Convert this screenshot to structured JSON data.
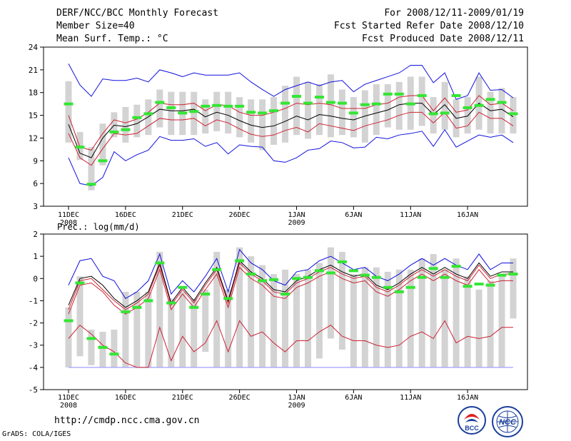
{
  "header": {
    "title": "DERF/NCC/BCC Monthly Forecast",
    "member_size": "Member Size=40",
    "variable": "Mean Surf. Temp.: °C",
    "forecast_range": "For 2008/12/11-2009/01/19",
    "start_refer_date": "Fcst Started Refer Date 2008/12/10",
    "produced_date": "Fcst Produced Date 2008/12/11"
  },
  "footer": {
    "url": "http://cmdp.ncc.cma.gov.cn",
    "credit": "GrADS: COLA/IGES",
    "logo_left_text": "BCC",
    "logo_right_text": "NCC"
  },
  "colors": {
    "box": "#d3d3d3",
    "green": "#33e633",
    "red": "#cc2233",
    "blue": "#1010dd",
    "black": "#000000",
    "floor": "#a0a0ff"
  },
  "chart_data": [
    {
      "type": "line",
      "name": "temperature",
      "title": "Mean Surf. Temp.: °C",
      "xlabel": "",
      "ylabel": "°C",
      "ylim": [
        3,
        24
      ],
      "yticks": [
        3,
        6,
        9,
        12,
        15,
        18,
        21,
        24
      ],
      "xtick_days": [
        1,
        6,
        11,
        16,
        21,
        26,
        31,
        36
      ],
      "xtick_labels": [
        "11DEC",
        "16DEC",
        "21DEC",
        "26DEC",
        "1JAN",
        "6JAN",
        "11JAN",
        "16JAN"
      ],
      "xtick_sublabels": [
        "2008",
        "",
        "",
        "",
        "2009",
        "",
        "",
        ""
      ],
      "days": [
        1,
        2,
        3,
        4,
        5,
        6,
        7,
        8,
        9,
        10,
        11,
        12,
        13,
        14,
        15,
        16,
        17,
        18,
        19,
        20,
        21,
        22,
        23,
        24,
        25,
        26,
        27,
        28,
        29,
        30,
        31,
        32,
        33,
        34,
        35,
        36,
        37,
        38,
        39,
        40
      ],
      "series": [
        {
          "name": "max",
          "color": "blue",
          "values": [
            21.8,
            19,
            17.5,
            19.8,
            19.6,
            19.6,
            19.9,
            19.4,
            21,
            20.6,
            20.1,
            20.6,
            20.3,
            20.3,
            20.3,
            20.6,
            19.4,
            18.4,
            17.5,
            18.4,
            18.9,
            19.4,
            18.9,
            19.4,
            19.6,
            18.1,
            19.1,
            19.6,
            20.1,
            20.6,
            21.6,
            21.6,
            19.3,
            20.6,
            17.1,
            17.6,
            20.6,
            18.3,
            18.4,
            17.3
          ]
        },
        {
          "name": "upper_quartile",
          "color": "red",
          "values": [
            15,
            10.8,
            10.4,
            12.6,
            14.4,
            14,
            14.5,
            15.4,
            16.6,
            16.4,
            16.4,
            16.6,
            15.6,
            16.4,
            16.3,
            15.4,
            15,
            15,
            15.4,
            15.9,
            16.6,
            16.4,
            16.6,
            16.4,
            15.9,
            15.9,
            15.9,
            16.4,
            16.6,
            17.4,
            17.6,
            17.6,
            15.6,
            17.3,
            15.4,
            15.7,
            17.6,
            16.4,
            16.6,
            15.6
          ]
        },
        {
          "name": "mean",
          "color": "black",
          "values": [
            13.8,
            10,
            9.4,
            12,
            13.7,
            13.5,
            13.9,
            14.8,
            15.8,
            15.6,
            15.6,
            15.8,
            14.8,
            15.4,
            15,
            14.3,
            13.7,
            13.4,
            13.6,
            14.2,
            14.9,
            14.4,
            15.1,
            14.9,
            14.6,
            14.4,
            14.9,
            15.3,
            15.7,
            16.4,
            16.6,
            16.6,
            15.1,
            16.4,
            14.6,
            14.9,
            16.6,
            15.6,
            15.8,
            14.8
          ]
        },
        {
          "name": "lower_quartile",
          "color": "red",
          "values": [
            12.6,
            9.4,
            8.4,
            10.6,
            12.6,
            12.4,
            12.6,
            13.6,
            14.6,
            14.4,
            14.4,
            14.6,
            13.6,
            14.4,
            14,
            13.2,
            12.5,
            12.2,
            12.4,
            13,
            13.4,
            12.8,
            13.9,
            13.6,
            13.3,
            13,
            13.6,
            14,
            14.4,
            15,
            15.4,
            15.4,
            14,
            15.4,
            13.3,
            13.6,
            15.4,
            14.6,
            14.6,
            13.6
          ]
        },
        {
          "name": "min",
          "color": "blue",
          "values": [
            9.4,
            6,
            5.7,
            6.8,
            10.2,
            9,
            9.8,
            10.4,
            12.2,
            11.7,
            11.7,
            11.9,
            10.9,
            11.4,
            9.9,
            11.1,
            10.9,
            10.8,
            9,
            8.8,
            9.4,
            10.4,
            10.6,
            11.6,
            11.4,
            10.7,
            10.8,
            12.1,
            11.9,
            12.4,
            12.6,
            12.9,
            10.9,
            13.1,
            10.8,
            11.6,
            12.4,
            12.1,
            12.4,
            11.4
          ]
        },
        {
          "name": "observed",
          "color": "green",
          "values": [
            16.5,
            10.8,
            5.9,
            9,
            12.8,
            13.1,
            14.7,
            15.2,
            16.7,
            16,
            15.3,
            15.5,
            16.2,
            16.3,
            16.2,
            16.2,
            15.4,
            15.3,
            15.6,
            16.6,
            17.5,
            16.6,
            17.4,
            16.7,
            16.6,
            15.3,
            16.4,
            16.5,
            17.8,
            17.8,
            16.5,
            17.6,
            15.2,
            15.3,
            17.6,
            16,
            16.3,
            17.1,
            16.7,
            15.2
          ]
        }
      ],
      "box_top": [
        19.5,
        12.8,
        10.8,
        13.9,
        15.4,
        16.1,
        16.4,
        17.1,
        18.4,
        18.1,
        18.1,
        18.1,
        17.1,
        18.1,
        18.1,
        17.4,
        17.1,
        17.1,
        17.4,
        18.9,
        20.1,
        19.4,
        19.1,
        20.4,
        18.4,
        17.4,
        18.3,
        19.1,
        19.1,
        19.4,
        20.1,
        20.1,
        17.4,
        19.4,
        17.1,
        17.4,
        20.1,
        18.1,
        18.6,
        17.4
      ],
      "box_bottom": [
        11.4,
        9.1,
        5.1,
        8.4,
        12.1,
        11.4,
        12.1,
        12.4,
        13.4,
        12.4,
        12.4,
        12.4,
        12.6,
        12.9,
        12.6,
        12.1,
        11.4,
        10.4,
        11.1,
        11.4,
        12.4,
        11.9,
        12.4,
        12.1,
        12.4,
        12.1,
        11.4,
        12.4,
        13.4,
        13.1,
        13.1,
        13.6,
        12.6,
        13.1,
        12.1,
        12.6,
        13.1,
        12.6,
        12.6,
        12.6
      ]
    },
    {
      "type": "line",
      "name": "precipitation",
      "title": "Prec.: log(mm/d)",
      "xlabel": "",
      "ylabel": "log(mm/d)",
      "ylim": [
        -5,
        2
      ],
      "yticks": [
        -5,
        -4,
        -3,
        -2,
        -1,
        0,
        1,
        2
      ],
      "xtick_days": [
        1,
        6,
        11,
        16,
        21,
        26,
        31,
        36
      ],
      "xtick_labels": [
        "11DEC",
        "16DEC",
        "21DEC",
        "26DEC",
        "1JAN",
        "6JAN",
        "11JAN",
        "16JAN"
      ],
      "xtick_sublabels": [
        "2008",
        "",
        "",
        "",
        "2009",
        "",
        "",
        ""
      ],
      "floor_value": -4,
      "days": [
        1,
        2,
        3,
        4,
        5,
        6,
        7,
        8,
        9,
        10,
        11,
        12,
        13,
        14,
        15,
        16,
        17,
        18,
        19,
        20,
        21,
        22,
        23,
        24,
        25,
        26,
        27,
        28,
        29,
        30,
        31,
        32,
        33,
        34,
        35,
        36,
        37,
        38,
        39,
        40
      ],
      "series": [
        {
          "name": "max",
          "color": "blue",
          "values": [
            -0.3,
            0.8,
            0.9,
            0.1,
            -0.1,
            -0.9,
            -0.6,
            -0.1,
            1.1,
            -0.7,
            -0.1,
            -0.6,
            0.1,
            0.9,
            -0.6,
            1.3,
            0.7,
            0.4,
            -0.1,
            -0.3,
            0.3,
            0.4,
            0.8,
            1,
            0.7,
            0.4,
            0.5,
            0.1,
            -0.1,
            0.2,
            0.6,
            0.9,
            0.6,
            0.9,
            0.6,
            0.4,
            1.1,
            0.4,
            0.7,
            0.7
          ]
        },
        {
          "name": "upper_quartile",
          "color": "red",
          "values": [
            -1.4,
            -0.1,
            0,
            -0.5,
            -1,
            -1.4,
            -1.1,
            -0.7,
            0.6,
            -1.2,
            -0.5,
            -1.1,
            -0.3,
            0.4,
            -1.1,
            0.7,
            0.2,
            -0.1,
            -0.6,
            -0.7,
            -0.2,
            0,
            0.3,
            0.5,
            0.2,
            0,
            0.1,
            -0.4,
            -0.6,
            -0.3,
            0.1,
            0.4,
            0.1,
            0.4,
            0.1,
            -0.1,
            0.6,
            0,
            0.2,
            0.2
          ]
        },
        {
          "name": "mean",
          "color": "black",
          "values": [
            -1.2,
            0,
            0.1,
            -0.3,
            -0.9,
            -1.3,
            -1,
            -0.6,
            0.7,
            -1.1,
            -0.4,
            -1,
            -0.2,
            0.5,
            -1,
            0.8,
            0.3,
            0,
            -0.5,
            -0.6,
            -0.1,
            0.1,
            0.4,
            0.6,
            0.3,
            0.1,
            0.2,
            -0.3,
            -0.5,
            -0.2,
            0.2,
            0.5,
            0.2,
            0.5,
            0.2,
            0,
            0.7,
            0.1,
            0.3,
            0.3
          ]
        },
        {
          "name": "lower_quartile",
          "color": "red",
          "values": [
            -1.6,
            -0.3,
            -0.2,
            -0.6,
            -1.2,
            -1.6,
            -1.3,
            -0.9,
            0.4,
            -1.4,
            -0.7,
            -1.3,
            -0.5,
            0.2,
            -1.3,
            0.5,
            0,
            -0.3,
            -0.8,
            -0.9,
            -0.4,
            -0.2,
            0.1,
            0.3,
            0,
            -0.2,
            -0.1,
            -0.6,
            -0.8,
            -0.5,
            -0.1,
            0.2,
            -0.1,
            0.2,
            -0.1,
            -0.3,
            0.4,
            -0.2,
            -0.1,
            -0.1
          ]
        },
        {
          "name": "min",
          "color": "red",
          "values": [
            -2.7,
            -2.1,
            -2.5,
            -3,
            -3.3,
            -3.8,
            -4,
            -4,
            -2.2,
            -3.7,
            -2.6,
            -3.3,
            -2.9,
            -1.9,
            -3.3,
            -1.9,
            -2.6,
            -2.4,
            -2.9,
            -3.3,
            -2.8,
            -2.8,
            -2.4,
            -2.1,
            -2.6,
            -2.8,
            -2.8,
            -3,
            -3.1,
            -3,
            -2.6,
            -2.4,
            -2.7,
            -1.9,
            -2.9,
            -2.6,
            -2.7,
            -2.6,
            -2.2,
            -2.2
          ]
        },
        {
          "name": "observed",
          "color": "green",
          "values": [
            -1.9,
            -0.2,
            -2.7,
            -3.1,
            -3.4,
            -1.5,
            -1.3,
            -1,
            0.7,
            -1.1,
            -0.4,
            -1.3,
            -0.7,
            0.4,
            -0.9,
            0.8,
            0.2,
            -0.1,
            -0.05,
            -0.7,
            0,
            0.05,
            0.35,
            0.25,
            0.75,
            0.35,
            0.15,
            0.05,
            -0.4,
            -0.6,
            -0.4,
            0.05,
            0.45,
            0.05,
            0.55,
            -0.35,
            -0.25,
            -0.3,
            0.15,
            0.2
          ]
        }
      ],
      "box_top": [
        -1.3,
        0.1,
        -2.3,
        -2.4,
        -2.3,
        -0.6,
        -0.6,
        -0.6,
        1.2,
        -0.9,
        -0.6,
        -0.9,
        -0.5,
        1.2,
        -0.5,
        1.4,
        1,
        0.6,
        0.2,
        0.4,
        0.2,
        0.4,
        0.7,
        1.4,
        1.2,
        0.2,
        0.5,
        0.5,
        0.3,
        0.4,
        0.4,
        0.9,
        1.1,
        0.4,
        0.9,
        0.1,
        -0.5,
        -0.1,
        0.2,
        0.9
      ],
      "box_bottom": [
        -4,
        -3.5,
        -3.9,
        -4,
        -4,
        -4,
        -4,
        -4,
        -4,
        -4,
        -4,
        -4,
        -3.3,
        -4,
        -4,
        -4,
        -4,
        -4,
        -4,
        -4,
        -4,
        -4,
        -3.6,
        -2.7,
        -3.2,
        -4,
        -4,
        -4,
        -4,
        -4,
        -4,
        -4,
        -4,
        -4,
        -4,
        -4,
        -4,
        -4,
        -4,
        -1.8
      ]
    }
  ]
}
